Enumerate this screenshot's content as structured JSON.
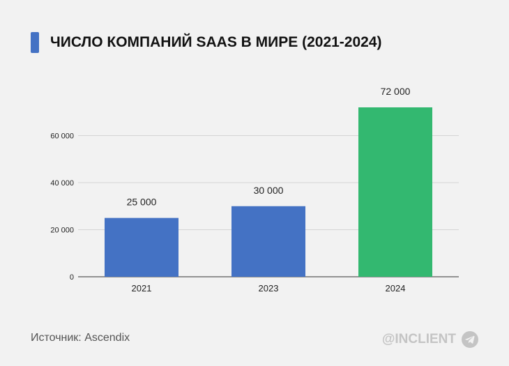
{
  "title": "ЧИСЛО КОМПАНИЙ SAAS В МИРЕ (2021-2024)",
  "source": "Источник: Ascendix",
  "brand": {
    "text": "@INCLIENT",
    "icon": "telegram-icon"
  },
  "colors": {
    "accent": "#4472c4",
    "highlight": "#33b870",
    "background": "#f2f2f2"
  },
  "chart_data": {
    "type": "bar",
    "title": "ЧИСЛО КОМПАНИЙ SAAS В МИРЕ (2021-2024)",
    "categories": [
      "2021",
      "2023",
      "2024"
    ],
    "values": [
      25000,
      30000,
      72000
    ],
    "value_labels": [
      "25 000",
      "30 000",
      "72 000"
    ],
    "bar_colors": [
      "#4472c4",
      "#4472c4",
      "#33b870"
    ],
    "y_ticks": [
      0,
      20000,
      40000,
      60000
    ],
    "y_tick_labels": [
      "0",
      "20 000",
      "40 000",
      "60 000"
    ],
    "ylim": [
      0,
      80000
    ],
    "xlabel": "",
    "ylabel": "",
    "grid": true,
    "legend": "none"
  }
}
